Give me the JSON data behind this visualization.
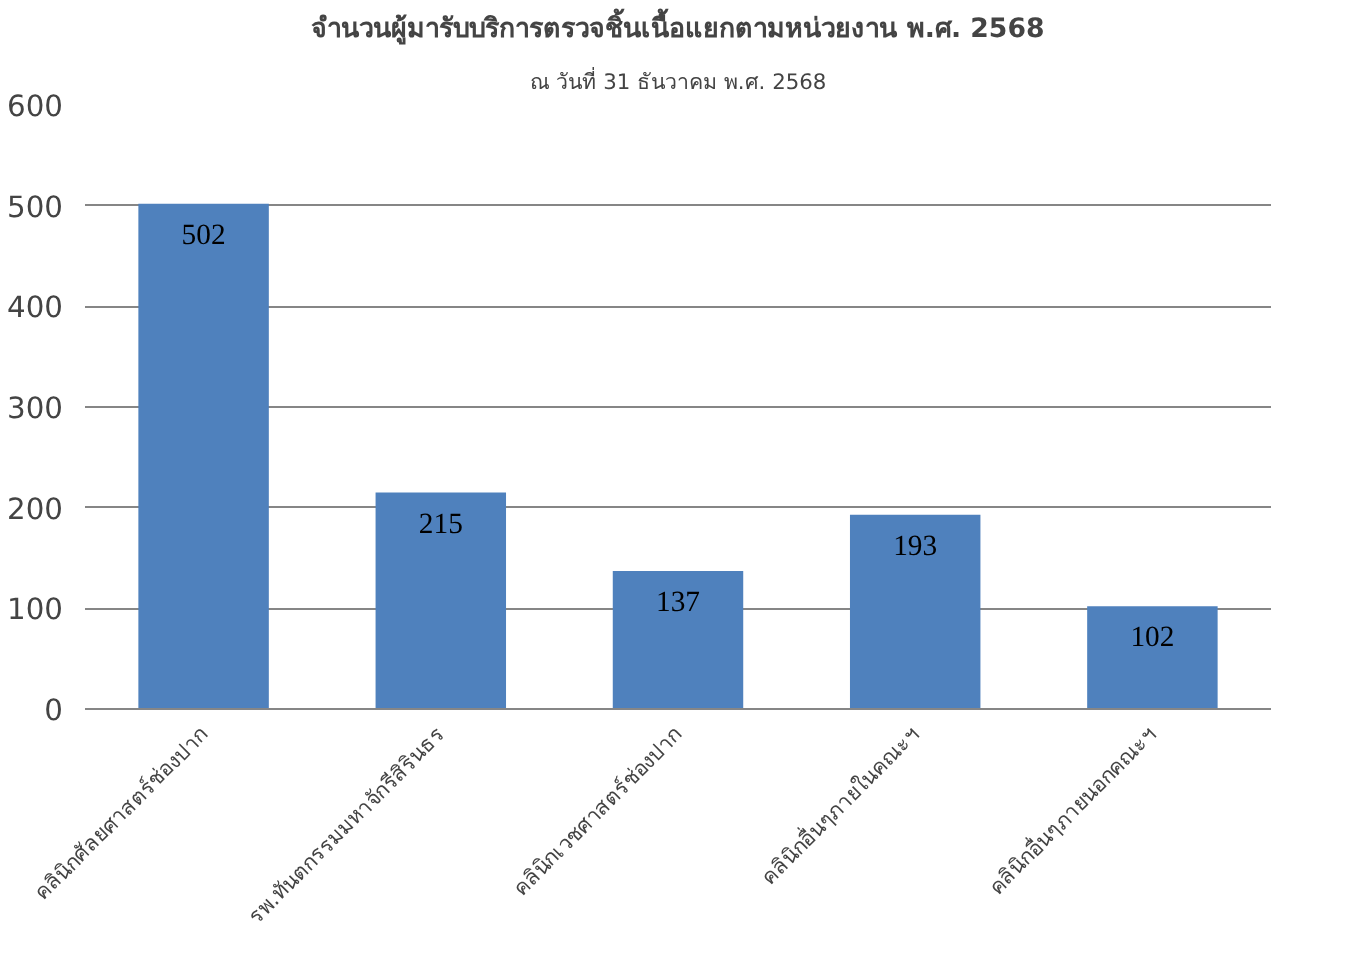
{
  "chart_data": {
    "type": "bar",
    "title": "จำนวนผู้มารับบริการตรวจชิ้นเนื้อแยกตามหน่วยงาน พ.ศ. 2568",
    "subtitle": "ณ วันที่ 31 ธันวาคม พ.ศ. 2568",
    "categories": [
      "คลินิกศัลยศาสตร์ช่องปาก",
      "รพ.ทันตกรรมมหาจักรีสิรินธร",
      "คลินิกเวชศาสตร์ช่องปาก",
      "คลินิกอื่นๆภายในคณะฯ",
      "คลินิกอื่นๆภายนอกคณะฯ"
    ],
    "values": [
      502,
      215,
      137,
      193,
      102
    ],
    "color": "#4f81bd",
    "ylim": [
      0,
      600
    ],
    "yticks": [
      0,
      100,
      200,
      300,
      400,
      500,
      600
    ],
    "grid": "y",
    "data_labels": true
  }
}
